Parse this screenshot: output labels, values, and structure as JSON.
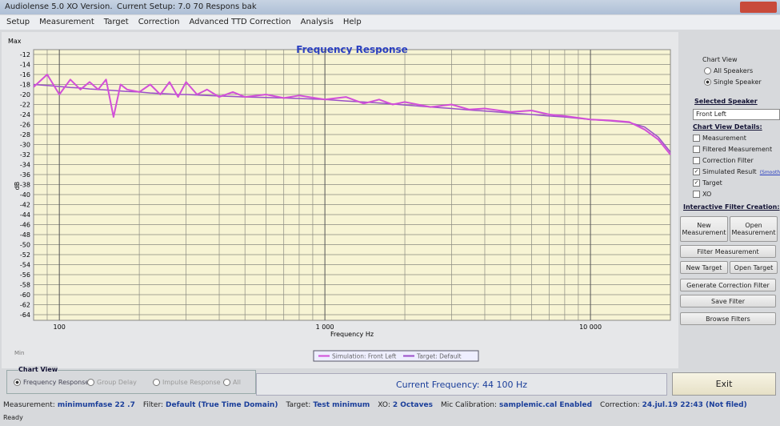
{
  "window": {
    "title": "Audiolense 5.0 XO Version.",
    "setup": "Current Setup: 7.0 70 Respons bak"
  },
  "menu": [
    "Setup",
    "Measurement",
    "Target",
    "Correction",
    "Advanced TTD Correction",
    "Analysis",
    "Help"
  ],
  "chart_data": {
    "type": "line",
    "title": "Frequency Response",
    "x_label": "Frequency Hz",
    "y_label": "dB",
    "top_label": "Max",
    "bottom_label": "Min",
    "log_x": true,
    "grid": true,
    "xlim": [
      80,
      20000
    ],
    "ylim": [
      -64,
      -12
    ],
    "xticks": [
      100,
      {
        "value": 1000,
        "label": "1 000"
      },
      {
        "value": 10000,
        "label": "10 000"
      }
    ],
    "xgrid": [
      90,
      200,
      300,
      400,
      500,
      600,
      700,
      800,
      900,
      2000,
      3000,
      4000,
      5000,
      6000,
      7000,
      8000,
      9000,
      20000
    ],
    "yticks": [
      -12,
      -14,
      -16,
      -18,
      -20,
      -22,
      -24,
      -26,
      -28,
      -30,
      -32,
      -34,
      -36,
      -38,
      -40,
      -42,
      -44,
      -46,
      -48,
      -50,
      -52,
      -54,
      -56,
      -58,
      -60,
      -62,
      -64
    ],
    "x": [
      80,
      90,
      100,
      110,
      120,
      130,
      140,
      150,
      160,
      170,
      180,
      200,
      220,
      240,
      260,
      280,
      300,
      330,
      360,
      400,
      450,
      500,
      600,
      700,
      800,
      1000,
      1200,
      1400,
      1600,
      1800,
      2000,
      2500,
      3000,
      3500,
      4000,
      5000,
      6000,
      7000,
      8000,
      10000,
      12000,
      14000,
      16000,
      18000,
      20000
    ],
    "series": [
      {
        "name": "Simulation: Front Left",
        "color": "#d24fd8",
        "values": [
          -18.5,
          -16,
          -20,
          -17,
          -19,
          -17.5,
          -19,
          -17,
          -24.5,
          -18,
          -19,
          -19.5,
          -18,
          -20,
          -17.5,
          -20.5,
          -17.5,
          -20,
          -19,
          -20.5,
          -19.5,
          -20.5,
          -20,
          -20.7,
          -20.2,
          -21,
          -20.5,
          -21.8,
          -21,
          -22,
          -21.5,
          -22.5,
          -22,
          -23,
          -22.8,
          -23.5,
          -23.2,
          -24,
          -24.3,
          -25,
          -25.2,
          -25.5,
          -27,
          -29,
          -32
        ]
      },
      {
        "name": "Target: Default",
        "color": "#9b4fc9",
        "values": [
          -18,
          -18.2,
          -18.4,
          -18.6,
          -18.7,
          -18.9,
          -19,
          -19.1,
          -19.2,
          -19.3,
          -19.4,
          -19.5,
          -19.7,
          -19.8,
          -19.9,
          -20,
          -20,
          -20.1,
          -20.2,
          -20.3,
          -20.4,
          -20.5,
          -20.6,
          -20.7,
          -20.8,
          -21,
          -21.3,
          -21.5,
          -21.7,
          -21.9,
          -22.1,
          -22.5,
          -22.8,
          -23.1,
          -23.3,
          -23.7,
          -24,
          -24.3,
          -24.5,
          -25,
          -25.3,
          -25.6,
          -26.5,
          -28.5,
          -31.5
        ]
      }
    ]
  },
  "side_panel": {
    "chart_view": {
      "title": "Chart View",
      "options": [
        {
          "label": "All Speakers",
          "selected": false
        },
        {
          "label": "Single Speaker",
          "selected": true
        }
      ]
    },
    "selected_speaker": {
      "title": "Selected Speaker",
      "value": "Front Left"
    },
    "details": {
      "title": "Chart View Details:",
      "items": [
        {
          "label": "Measurement",
          "checked": false
        },
        {
          "label": "Filtered Measurement",
          "checked": false
        },
        {
          "label": "Correction Filter",
          "checked": false
        },
        {
          "label": "Simulated Result",
          "checked": true,
          "note": "(Smoothed)"
        },
        {
          "label": "Target",
          "checked": true
        },
        {
          "label": "XO",
          "checked": false
        }
      ]
    },
    "filter_creation": {
      "title": "Interactive Filter Creation:",
      "buttons": [
        [
          "New Measurement",
          "Open Measurement"
        ],
        [
          "Filter Measurement"
        ],
        [
          "New Target",
          "Open Target"
        ],
        [
          "Generate Correction Filter"
        ],
        [
          "Save Filter"
        ],
        [
          "Browse Filters"
        ]
      ]
    }
  },
  "bottom": {
    "chart_view": {
      "title": "Chart View",
      "options": [
        {
          "label": "Frequency Response",
          "selected": true
        },
        {
          "label": "Group Delay",
          "selected": false
        },
        {
          "label": "Impulse Response",
          "selected": false
        },
        {
          "label": "All",
          "selected": false
        }
      ]
    },
    "current_frequency": "Current Frequency: 44 100 Hz",
    "exit": "Exit"
  },
  "status": {
    "items": [
      {
        "label": "Measurement:",
        "value": "minimumfase 22 .7"
      },
      {
        "label": "Filter:",
        "value": "Default (True Time Domain)"
      },
      {
        "label": "Target:",
        "value": "Test minimum"
      },
      {
        "label": "XO:",
        "value": "2 Octaves"
      },
      {
        "label": "Mic Calibration:",
        "value": "samplemic.cal Enabled"
      },
      {
        "label": "Correction:",
        "value": "24.jul.19 22:43 (Not filed)"
      }
    ],
    "ready": "Ready"
  }
}
